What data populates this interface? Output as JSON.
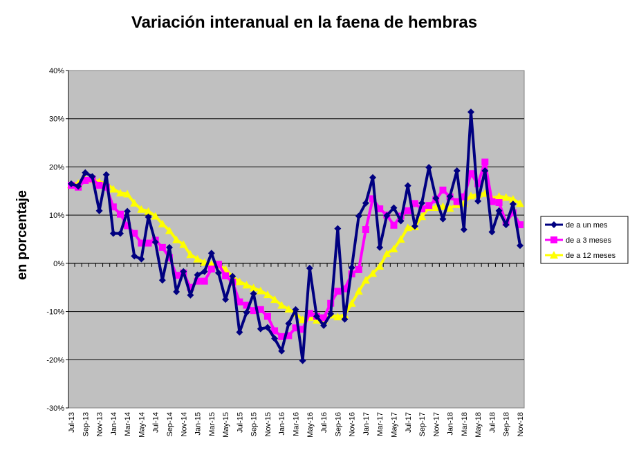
{
  "chart_data": {
    "type": "line",
    "title": "Variación interanual en la faena de hembras",
    "xlabel": "",
    "ylabel": "en porcentaje",
    "ylim": [
      -30,
      40
    ],
    "yticks": [
      -30,
      -20,
      -10,
      0,
      10,
      20,
      30,
      40
    ],
    "ytick_labels": [
      "-30%",
      "-20%",
      "-10%",
      "0%",
      "10%",
      "20%",
      "30%",
      "40%"
    ],
    "grid": true,
    "legend_position": "right",
    "x": [
      "Jul-13",
      "Aug-13",
      "Sep-13",
      "Oct-13",
      "Nov-13",
      "Dec-13",
      "Jan-14",
      "Feb-14",
      "Mar-14",
      "Apr-14",
      "May-14",
      "Jun-14",
      "Jul-14",
      "Aug-14",
      "Sep-14",
      "Oct-14",
      "Nov-14",
      "Dec-14",
      "Jan-15",
      "Feb-15",
      "Mar-15",
      "Apr-15",
      "May-15",
      "Jun-15",
      "Jul-15",
      "Aug-15",
      "Sep-15",
      "Oct-15",
      "Nov-15",
      "Dec-15",
      "Jan-16",
      "Feb-16",
      "Mar-16",
      "Apr-16",
      "May-16",
      "Jun-16",
      "Jul-16",
      "Aug-16",
      "Sep-16",
      "Oct-16",
      "Nov-16",
      "Dec-16",
      "Jan-17",
      "Feb-17",
      "Mar-17",
      "Apr-17",
      "May-17",
      "Jun-17",
      "Jul-17",
      "Aug-17",
      "Sep-17",
      "Oct-17",
      "Nov-17",
      "Dec-17",
      "Jan-18",
      "Feb-18",
      "Mar-18",
      "Apr-18",
      "May-18",
      "Jun-18",
      "Jul-18",
      "Aug-18",
      "Sep-18",
      "Oct-18",
      "Nov-18"
    ],
    "xtick_labels": [
      "Jul-13",
      "Sep-13",
      "Nov-13",
      "Jan-14",
      "Mar-14",
      "May-14",
      "Jul-14",
      "Sep-14",
      "Nov-14",
      "Jan-15",
      "Mar-15",
      "May-15",
      "Jul-15",
      "Sep-15",
      "Nov-15",
      "Jan-16",
      "Mar-16",
      "May-16",
      "Jul-16",
      "Sep-16",
      "Nov-16",
      "Jan-17",
      "Mar-17",
      "May-17",
      "Jul-17",
      "Sep-17",
      "Nov-17",
      "Jan-18",
      "Mar-18",
      "May-18",
      "Jul-18",
      "Sep-18",
      "Nov-18"
    ],
    "series": [
      {
        "name": "de a un mes",
        "color": "#000080",
        "marker": "diamond",
        "values": [
          16.5,
          16,
          18.8,
          18,
          10.9,
          18.4,
          6.2,
          6.2,
          10.8,
          1.5,
          0.9,
          9.6,
          4.4,
          -3.5,
          3.3,
          -5.9,
          -1.7,
          -6.6,
          -2.4,
          -1.7,
          2.1,
          -2,
          -7.5,
          -2.7,
          -14.3,
          -10.2,
          -6.3,
          -13.6,
          -13.3,
          -15.6,
          -18.2,
          -12.5,
          -9.6,
          -20.2,
          -1,
          -11,
          -12.9,
          -10.5,
          7.2,
          -11.6,
          -0.9,
          9.8,
          12.5,
          17.8,
          3.3,
          9.9,
          11.5,
          8.8,
          16.1,
          7.7,
          12.5,
          19.9,
          13.5,
          9.2,
          13.9,
          19.2,
          7,
          31.4,
          12.9,
          19.2,
          6.5,
          10.9,
          8,
          12.3,
          3.7
        ]
      },
      {
        "name": "de a 3 meses",
        "color": "#ff00ff",
        "marker": "square",
        "values": [
          16.2,
          15.8,
          17.2,
          17.5,
          16.2,
          15.8,
          11.7,
          10.2,
          7.8,
          6.2,
          4.2,
          4.2,
          4.8,
          3.3,
          1.2,
          -2.5,
          -2,
          -5,
          -3.7,
          -3.7,
          -1.2,
          -0.2,
          -2.6,
          -3.9,
          -8,
          -8.7,
          -9.8,
          -9.6,
          -11,
          -14,
          -15.2,
          -15,
          -13.4,
          -13.7,
          -10.4,
          -11,
          -11.3,
          -8.3,
          -5.8,
          -5.3,
          -2.2,
          -1.3,
          7,
          13.4,
          11.3,
          10,
          7.9,
          9.8,
          10.9,
          12.4,
          11.3,
          12,
          13.2,
          15.2,
          13.8,
          12.8,
          13.8,
          18.6,
          16.5,
          21,
          12.8,
          12.6,
          8.5,
          10.5,
          8
        ]
      },
      {
        "name": "de a 12 meses",
        "color": "#ffff00",
        "marker": "triangle",
        "values": [
          16.3,
          16.6,
          17.4,
          17.4,
          16.9,
          16.6,
          15.4,
          14.6,
          14.4,
          12.5,
          11.2,
          10.8,
          9.8,
          8.2,
          6.8,
          4.9,
          3.9,
          1.8,
          0.9,
          0.2,
          -0.2,
          -0.4,
          -1.2,
          -2.8,
          -3.8,
          -4.5,
          -5.1,
          -5.7,
          -6.5,
          -7.5,
          -8.7,
          -9.5,
          -10.4,
          -11.7,
          -11.2,
          -11.8,
          -11.8,
          -10.7,
          -11.1,
          -10.7,
          -8.3,
          -5.8,
          -3.5,
          -2.1,
          -0.6,
          2,
          3,
          5,
          7.4,
          7.6,
          9.7,
          11.6,
          11.6,
          11.8,
          11.4,
          12.2,
          12.5,
          14,
          14.3,
          14.5,
          13.5,
          13.9,
          13.7,
          13.3,
          12.4
        ]
      }
    ]
  }
}
